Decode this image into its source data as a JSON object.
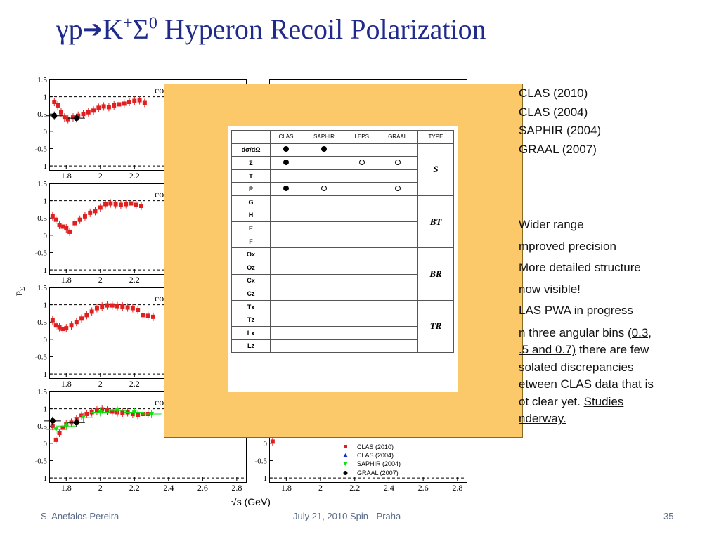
{
  "slide": {
    "title": {
      "gamma_p": "γp",
      "k": "K",
      "k_sup": "+",
      "sigma": "Σ",
      "sigma_sup": "0",
      "rest": " Hyperon Recoil Polarization"
    },
    "ylabel": "P",
    "ylabel_sub": "Σ",
    "xlabel": "√s (GeV)",
    "panel_label_cut": "co"
  },
  "legend_top": [
    "CLAS (2010)",
    "CLAS (2004)",
    "SAPHIR (2004)",
    "GRAAL (2007)"
  ],
  "bullets": {
    "b1": "Wider range",
    "b2": "mproved precision",
    "b3": "More detailed structure",
    "b4": "now visible!",
    "b5": "LAS PWA in progress",
    "p1": "n three angular bins ",
    "p1u": "(0.3,",
    "p2u": ".5 and 0.7)",
    "p2": " there are few",
    "p3": "solated discrepancies",
    "p4": "etween CLAS data that is",
    "p5": "ot clear yet. ",
    "p5u": "Studies",
    "p6u": "nderway."
  },
  "plot_legend": [
    "CLAS (2010)",
    "CLAS (2004)",
    "SAPHIR (2004)",
    "GRAAL (2007)"
  ],
  "table": {
    "headers": [
      "",
      "CLAS",
      "SAPHIR",
      "LEPS",
      "GRAAL",
      "TYPE"
    ],
    "rows": [
      {
        "obs": "dσ/dΩ",
        "clas": "dot",
        "saphir": "dot",
        "leps": "",
        "graal": ""
      },
      {
        "obs": "Σ",
        "clas": "dot",
        "saphir": "",
        "leps": "ring",
        "graal": "ring"
      },
      {
        "obs": "T",
        "clas": "",
        "saphir": "",
        "leps": "",
        "graal": ""
      },
      {
        "obs": "P",
        "clas": "dot",
        "saphir": "ring",
        "leps": "",
        "graal": "ring"
      },
      {
        "obs": "G",
        "clas": "",
        "saphir": "",
        "leps": "",
        "graal": ""
      },
      {
        "obs": "H",
        "clas": "",
        "saphir": "",
        "leps": "",
        "graal": ""
      },
      {
        "obs": "E",
        "clas": "",
        "saphir": "",
        "leps": "",
        "graal": ""
      },
      {
        "obs": "F",
        "clas": "",
        "saphir": "",
        "leps": "",
        "graal": ""
      },
      {
        "obs": "Ox",
        "clas": "",
        "saphir": "",
        "leps": "",
        "graal": ""
      },
      {
        "obs": "Oz",
        "clas": "",
        "saphir": "",
        "leps": "",
        "graal": ""
      },
      {
        "obs": "Cx",
        "clas": "",
        "saphir": "",
        "leps": "",
        "graal": ""
      },
      {
        "obs": "Cz",
        "clas": "",
        "saphir": "",
        "leps": "",
        "graal": ""
      },
      {
        "obs": "Tx",
        "clas": "",
        "saphir": "",
        "leps": "",
        "graal": ""
      },
      {
        "obs": "Tz",
        "clas": "",
        "saphir": "",
        "leps": "",
        "graal": ""
      },
      {
        "obs": "Lx",
        "clas": "",
        "saphir": "",
        "leps": "",
        "graal": ""
      },
      {
        "obs": "Lz",
        "clas": "",
        "saphir": "",
        "leps": "",
        "graal": ""
      }
    ],
    "types": [
      "S",
      "BT",
      "BR",
      "TR"
    ]
  },
  "footer": {
    "author": "S. Anefalos Pereira",
    "event": "July 21, 2010 Spin - Praha",
    "page": "35"
  },
  "colors": {
    "title": "#1f2a8a",
    "clas2010": "#e02020",
    "clas2004": "#1030d0",
    "saphir": "#10e010",
    "graal": "#000000",
    "overlay": "#fbc96a"
  },
  "chart_data": [
    {
      "type": "scatter",
      "xlim": [
        1.7,
        2.85
      ],
      "ylim": [
        -1.1,
        1.5
      ],
      "x_ticks": [
        "1.8",
        "2",
        "2.2",
        "2.4",
        "2.6",
        "2.8"
      ],
      "y_ticks": [
        "1.5",
        "1",
        "0.5",
        "0",
        "-0.5",
        "-1"
      ],
      "series": [
        {
          "name": "CLAS (2010)",
          "x": [
            1.73,
            1.75,
            1.77,
            1.79,
            1.81,
            1.84,
            1.87,
            1.9,
            1.93,
            1.96,
            1.99,
            2.02,
            2.05,
            2.08,
            2.11,
            2.14,
            2.17,
            2.2,
            2.23,
            2.26
          ],
          "y": [
            0.85,
            0.75,
            0.55,
            0.4,
            0.35,
            0.4,
            0.45,
            0.5,
            0.55,
            0.6,
            0.68,
            0.72,
            0.7,
            0.75,
            0.78,
            0.8,
            0.85,
            0.88,
            0.9,
            0.82
          ]
        },
        {
          "name": "GRAAL (2007)",
          "x": [
            1.73,
            1.86
          ],
          "y": [
            0.45,
            0.38
          ]
        }
      ]
    },
    {
      "type": "scatter",
      "xlim": [
        1.7,
        2.85
      ],
      "ylim": [
        -1.1,
        1.5
      ],
      "x_ticks": [
        "1.8",
        "2",
        "2.2",
        "2.4",
        "2.6",
        "2.8"
      ],
      "y_ticks": [
        "1.5",
        "1",
        "0.5",
        "0",
        "-0.5",
        "-1"
      ],
      "series": [
        {
          "name": "CLAS (2010)",
          "x": [
            1.72,
            1.74,
            1.76,
            1.78,
            1.8,
            1.82,
            1.85,
            1.88,
            1.91,
            1.94,
            1.97,
            2.0,
            2.03,
            2.06,
            2.09,
            2.12,
            2.15,
            2.18,
            2.21,
            2.24
          ],
          "y": [
            0.55,
            0.45,
            0.3,
            0.25,
            0.2,
            0.1,
            0.35,
            0.45,
            0.55,
            0.65,
            0.7,
            0.8,
            0.9,
            0.92,
            0.9,
            0.88,
            0.9,
            0.92,
            0.88,
            0.85
          ]
        }
      ]
    },
    {
      "type": "scatter",
      "xlim": [
        1.7,
        2.85
      ],
      "ylim": [
        -1.1,
        1.5
      ],
      "x_ticks": [
        "1.8",
        "2",
        "2.2",
        "2.4",
        "2.6",
        "2.8"
      ],
      "y_ticks": [
        "1.5",
        "1",
        "0.5",
        "0",
        "-0.5",
        "-1"
      ],
      "series": [
        {
          "name": "CLAS (2010)",
          "x": [
            1.72,
            1.74,
            1.76,
            1.78,
            1.8,
            1.83,
            1.86,
            1.89,
            1.92,
            1.95,
            1.98,
            2.01,
            2.04,
            2.07,
            2.1,
            2.13,
            2.16,
            2.19,
            2.22,
            2.25,
            2.28,
            2.31
          ],
          "y": [
            0.55,
            0.4,
            0.35,
            0.3,
            0.32,
            0.4,
            0.5,
            0.6,
            0.7,
            0.8,
            0.9,
            0.95,
            0.98,
            0.98,
            0.96,
            0.95,
            0.92,
            0.9,
            0.85,
            0.7,
            0.68,
            0.65
          ]
        }
      ]
    },
    {
      "type": "scatter",
      "xlim": [
        1.7,
        2.85
      ],
      "ylim": [
        -1.1,
        1.5
      ],
      "x_ticks": [
        "1.8",
        "2",
        "2.2",
        "2.4",
        "2.6",
        "2.8"
      ],
      "y_ticks": [
        "1.5",
        "1",
        "0.5",
        "0",
        "-0.5",
        "-1"
      ],
      "series": [
        {
          "name": "CLAS (2010)",
          "x": [
            1.72,
            1.74,
            1.76,
            1.78,
            1.8,
            1.83,
            1.86,
            1.89,
            1.92,
            1.95,
            1.98,
            2.01,
            2.04,
            2.07,
            2.1,
            2.13,
            2.16,
            2.19,
            2.22,
            2.25,
            2.28
          ],
          "y": [
            0.5,
            0.1,
            0.3,
            0.45,
            0.55,
            0.6,
            0.7,
            0.8,
            0.85,
            0.9,
            0.95,
            0.98,
            0.95,
            0.92,
            0.9,
            0.88,
            0.9,
            0.85,
            0.82,
            0.85,
            0.85
          ]
        },
        {
          "name": "SAPHIR (2004)",
          "x": [
            1.74,
            1.8,
            1.9,
            2.0,
            2.1,
            2.2,
            2.3
          ],
          "y": [
            0.4,
            0.5,
            0.75,
            0.9,
            0.95,
            0.9,
            0.85
          ]
        },
        {
          "name": "GRAAL (2007)",
          "x": [
            1.72,
            1.86
          ],
          "y": [
            0.65,
            0.6
          ]
        }
      ]
    },
    {
      "type": "scatter",
      "xlim": [
        1.7,
        2.85
      ],
      "ylim": [
        -1.1,
        1.5
      ],
      "x_ticks": [
        "1.8",
        "2",
        "2.2",
        "2.4",
        "2.6",
        "2.8"
      ],
      "y_ticks": [
        "1.5",
        "1",
        "0.5",
        "0",
        "-0.5",
        "-1"
      ],
      "series": [
        {
          "name": "CLAS (2010)",
          "x": [
            1.72
          ],
          "y": [
            0.05
          ]
        }
      ]
    }
  ]
}
